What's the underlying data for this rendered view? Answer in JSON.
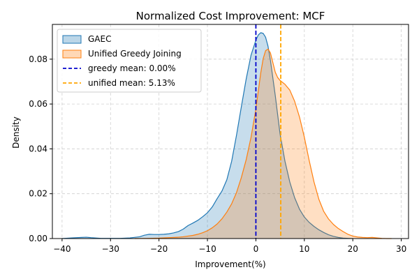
{
  "chart_data": {
    "type": "area",
    "title": "Normalized Cost Improvement: MCF",
    "xlabel": "Improvement(%)",
    "ylabel": "Density",
    "xlim": [
      -42,
      31.5
    ],
    "ylim": [
      0,
      0.0955
    ],
    "xticks": [
      -40,
      -30,
      -20,
      -10,
      0,
      10,
      20,
      30
    ],
    "xtick_labels": [
      "−40",
      "−30",
      "−20",
      "−10",
      "0",
      "10",
      "20",
      "30"
    ],
    "yticks": [
      0,
      0.02,
      0.04,
      0.06,
      0.08
    ],
    "ytick_labels": [
      "0.00",
      "0.02",
      "0.04",
      "0.06",
      "0.08"
    ],
    "grid": true,
    "legend_position": "top-left",
    "series": [
      {
        "name": "GAEC",
        "color": "#1f77b4",
        "fill": "#1f77b4",
        "fill_opacity": 0.25,
        "x": [
          -40,
          -38,
          -36,
          -35,
          -34,
          -32,
          -30,
          -28,
          -26,
          -24,
          -23,
          -22,
          -21,
          -20,
          -19,
          -18,
          -17,
          -16,
          -15,
          -14,
          -13,
          -12,
          -11,
          -10,
          -9,
          -8,
          -7,
          -6,
          -5,
          -4,
          -3,
          -2,
          -1,
          0,
          0.5,
          1,
          1.5,
          2,
          2.5,
          3,
          4,
          5,
          6,
          7,
          8,
          9,
          10,
          11,
          12,
          13,
          14,
          15,
          16,
          17,
          18,
          19,
          20
        ],
        "y": [
          0.0,
          0.0003,
          0.0005,
          0.0006,
          0.0004,
          0.0001,
          0.0001,
          0.0001,
          0.0003,
          0.0008,
          0.0015,
          0.0019,
          0.0018,
          0.0018,
          0.0019,
          0.0021,
          0.0025,
          0.0031,
          0.0042,
          0.0058,
          0.0069,
          0.0081,
          0.0097,
          0.0115,
          0.0141,
          0.0178,
          0.0212,
          0.0262,
          0.0345,
          0.0461,
          0.0588,
          0.0712,
          0.0818,
          0.0885,
          0.0908,
          0.0918,
          0.0915,
          0.0898,
          0.0858,
          0.0795,
          0.0638,
          0.0465,
          0.0345,
          0.0252,
          0.0182,
          0.0131,
          0.0096,
          0.0072,
          0.0054,
          0.0039,
          0.0027,
          0.0017,
          0.001,
          0.0005,
          0.0002,
          0.0001,
          0.0
        ]
      },
      {
        "name": "Unified Greedy Joining",
        "color": "#ff7f0e",
        "fill": "#ff7f0e",
        "fill_opacity": 0.25,
        "x": [
          -25,
          -22,
          -20,
          -18,
          -16,
          -15,
          -14,
          -13,
          -12,
          -11,
          -10,
          -9,
          -8,
          -7,
          -6,
          -5,
          -4,
          -3,
          -2,
          -1,
          0,
          0.5,
          1,
          1.5,
          2,
          2.5,
          3,
          3.5,
          4,
          4.5,
          5,
          6,
          7,
          8,
          9,
          10,
          11,
          12,
          13,
          14,
          15,
          16,
          17,
          18,
          19,
          20,
          21,
          22,
          23,
          24,
          25,
          26,
          27,
          28
        ],
        "y": [
          0.0,
          0.0001,
          0.0002,
          0.0004,
          0.0006,
          0.0008,
          0.0011,
          0.0014,
          0.0019,
          0.0026,
          0.0035,
          0.0048,
          0.0065,
          0.0088,
          0.0118,
          0.0155,
          0.0205,
          0.0272,
          0.0352,
          0.0452,
          0.0578,
          0.0658,
          0.0738,
          0.0802,
          0.0838,
          0.0845,
          0.0828,
          0.0785,
          0.0742,
          0.0718,
          0.0705,
          0.0688,
          0.0662,
          0.0612,
          0.0542,
          0.0452,
          0.0348,
          0.0252,
          0.0175,
          0.0121,
          0.0087,
          0.0063,
          0.0045,
          0.0031,
          0.0019,
          0.0011,
          0.0007,
          0.0005,
          0.0004,
          0.0005,
          0.0003,
          0.0001,
          0.0,
          0.0
        ]
      }
    ],
    "vlines": [
      {
        "name": "greedy mean: 0.00%",
        "x": 0.0,
        "color": "#0000cc",
        "style": "dashed"
      },
      {
        "name": "unified mean: 5.13%",
        "x": 5.13,
        "color": "#ffa500",
        "style": "dashed"
      }
    ]
  }
}
